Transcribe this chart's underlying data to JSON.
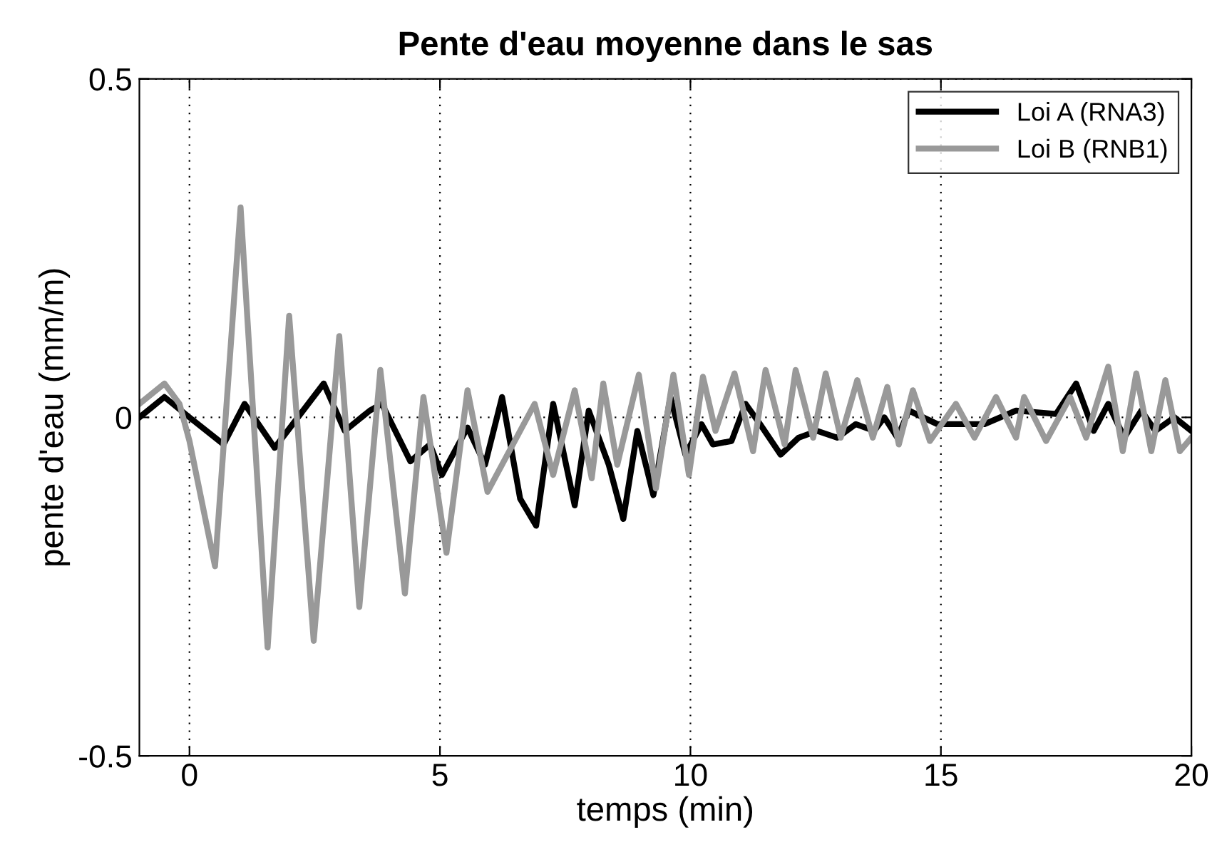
{
  "chart_data": {
    "type": "line",
    "title": "Pente d'eau moyenne dans le sas",
    "xlabel": "temps (min)",
    "ylabel": "pente d'eau (mm/m)",
    "xlim": [
      -1,
      20
    ],
    "ylim": [
      -0.5,
      0.5
    ],
    "xticks": [
      0,
      5,
      10,
      15,
      20
    ],
    "yticks": [
      -0.5,
      0,
      0.5
    ],
    "grid": true,
    "legend": "top right",
    "line_style": "solid",
    "marker": "none",
    "series": [
      {
        "name": "Loi A (RNA3)",
        "color": "#000000",
        "x": [
          -1,
          -0.5,
          0,
          0.68,
          1.1,
          1.7,
          2.68,
          3.1,
          3.6,
          3.84,
          4.41,
          4.8,
          5.04,
          5.55,
          5.9,
          6.24,
          6.6,
          6.92,
          7.26,
          7.69,
          7.97,
          8.37,
          8.66,
          8.94,
          9.26,
          9.6,
          9.9,
          10.22,
          10.45,
          10.82,
          11.1,
          11.39,
          11.8,
          12.16,
          12.53,
          12.93,
          13.3,
          13.67,
          13.87,
          14.13,
          14.36,
          14.93,
          15.38,
          15.87,
          16.5,
          17.3,
          17.7,
          18.05,
          18.34,
          18.66,
          19.0,
          19.28,
          19.66,
          20
        ],
        "values": [
          0.0,
          0.03,
          0.0,
          -0.04,
          0.02,
          -0.045,
          0.05,
          -0.02,
          0.01,
          0.02,
          -0.065,
          -0.04,
          -0.085,
          -0.015,
          -0.07,
          0.03,
          -0.12,
          -0.16,
          0.02,
          -0.13,
          0.01,
          -0.07,
          -0.15,
          -0.02,
          -0.115,
          0.03,
          -0.055,
          -0.01,
          -0.04,
          -0.035,
          0.02,
          -0.01,
          -0.055,
          -0.03,
          -0.02,
          -0.03,
          -0.01,
          -0.02,
          0.0,
          -0.03,
          0.01,
          -0.01,
          -0.01,
          -0.01,
          0.01,
          0.005,
          0.05,
          -0.02,
          0.02,
          -0.03,
          0.01,
          -0.02,
          0.0,
          -0.02
        ]
      },
      {
        "name": "Loi B (RNB1)",
        "color": "#999999",
        "x": [
          -1,
          -0.5,
          -0.2,
          0,
          0.51,
          1.02,
          1.56,
          1.99,
          2.48,
          2.99,
          3.39,
          3.81,
          4.3,
          4.67,
          5.13,
          5.55,
          5.95,
          6.89,
          7.26,
          7.69,
          8.03,
          8.26,
          8.54,
          8.97,
          9.31,
          9.66,
          9.97,
          10.25,
          10.5,
          10.88,
          11.25,
          11.5,
          11.88,
          12.1,
          12.45,
          12.7,
          13.0,
          13.33,
          13.64,
          13.93,
          14.16,
          14.44,
          14.78,
          15.3,
          15.67,
          16.1,
          16.5,
          16.66,
          17.1,
          17.58,
          17.9,
          18.34,
          18.63,
          18.9,
          19.2,
          19.48,
          19.77,
          20
        ],
        "values": [
          0.02,
          0.05,
          0.02,
          -0.035,
          -0.22,
          0.31,
          -0.34,
          0.15,
          -0.33,
          0.12,
          -0.28,
          0.07,
          -0.26,
          0.03,
          -0.2,
          0.04,
          -0.11,
          0.02,
          -0.085,
          0.04,
          -0.09,
          0.05,
          -0.07,
          0.063,
          -0.105,
          0.063,
          -0.085,
          0.06,
          -0.02,
          0.065,
          -0.05,
          0.07,
          -0.04,
          0.07,
          -0.03,
          0.065,
          -0.03,
          0.055,
          -0.03,
          0.045,
          -0.04,
          0.04,
          -0.035,
          0.02,
          -0.03,
          0.03,
          -0.03,
          0.03,
          -0.035,
          0.03,
          -0.03,
          0.075,
          -0.05,
          0.065,
          -0.05,
          0.055,
          -0.05,
          -0.03
        ]
      }
    ]
  }
}
